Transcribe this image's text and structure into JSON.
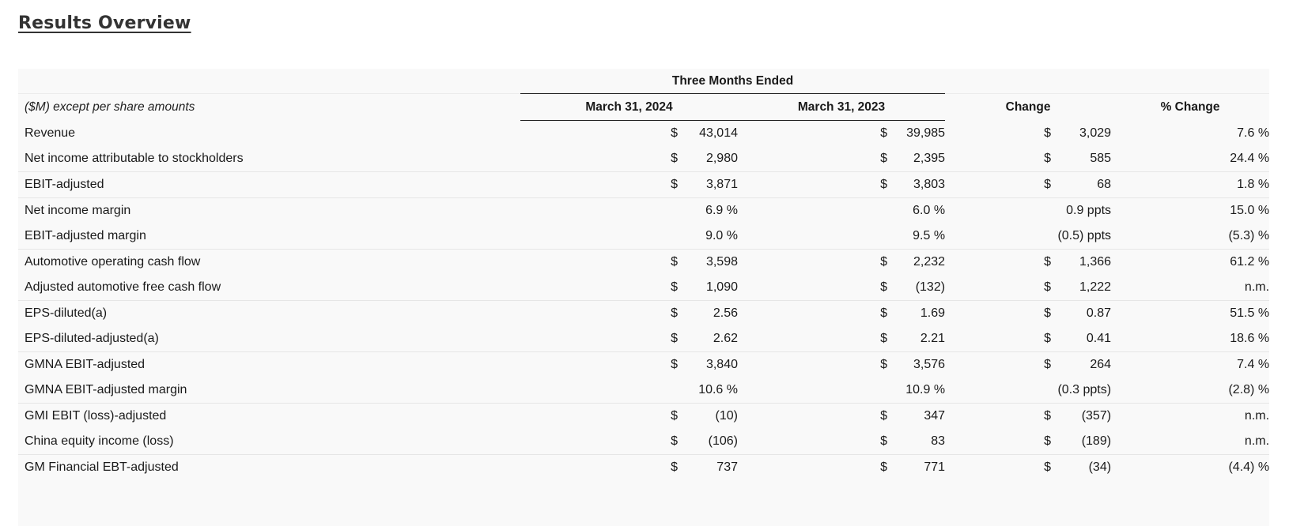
{
  "page_title": "Results Overview",
  "table": {
    "group_header": "Three Months Ended",
    "row_header_label": "($M) except per share amounts",
    "columns": [
      "March 31, 2024",
      "March 31, 2023",
      "Change",
      "% Change"
    ],
    "rows": [
      {
        "label": "Revenue",
        "c1_sym": "$",
        "c1": "43,014",
        "c2_sym": "$",
        "c2": "39,985",
        "ch_sym": "$",
        "ch": "3,029",
        "pct": "7.6 %",
        "sep": false
      },
      {
        "label": "Net income attributable to stockholders",
        "c1_sym": "$",
        "c1": "2,980",
        "c2_sym": "$",
        "c2": "2,395",
        "ch_sym": "$",
        "ch": "585",
        "pct": "24.4 %",
        "sep": true
      },
      {
        "label": "EBIT-adjusted",
        "c1_sym": "$",
        "c1": "3,871",
        "c2_sym": "$",
        "c2": "3,803",
        "ch_sym": "$",
        "ch": "68",
        "pct": "1.8 %",
        "sep": true
      },
      {
        "label": "Net income margin",
        "c1_sym": "",
        "c1": "6.9 %",
        "c2_sym": "",
        "c2": "6.0 %",
        "ch_sym": "",
        "ch": "0.9 ppts",
        "pct": "15.0 %",
        "sep": false
      },
      {
        "label": "EBIT-adjusted margin",
        "c1_sym": "",
        "c1": "9.0 %",
        "c2_sym": "",
        "c2": "9.5 %",
        "ch_sym": "",
        "ch": "(0.5) ppts",
        "pct": "(5.3) %",
        "sep": true
      },
      {
        "label": "Automotive operating cash flow",
        "c1_sym": "$",
        "c1": "3,598",
        "c2_sym": "$",
        "c2": "2,232",
        "ch_sym": "$",
        "ch": "1,366",
        "pct": "61.2 %",
        "sep": false
      },
      {
        "label": "Adjusted automotive free cash flow",
        "c1_sym": "$",
        "c1": "1,090",
        "c2_sym": "$",
        "c2": "(132)",
        "ch_sym": "$",
        "ch": "1,222",
        "pct": "n.m.",
        "sep": true
      },
      {
        "label": "EPS-diluted(a)",
        "c1_sym": "$",
        "c1": "2.56",
        "c2_sym": "$",
        "c2": "1.69",
        "ch_sym": "$",
        "ch": "0.87",
        "pct": "51.5 %",
        "sep": false
      },
      {
        "label": "EPS-diluted-adjusted(a)",
        "c1_sym": "$",
        "c1": "2.62",
        "c2_sym": "$",
        "c2": "2.21",
        "ch_sym": "$",
        "ch": "0.41",
        "pct": "18.6 %",
        "sep": true
      },
      {
        "label": "GMNA EBIT-adjusted",
        "c1_sym": "$",
        "c1": "3,840",
        "c2_sym": "$",
        "c2": "3,576",
        "ch_sym": "$",
        "ch": "264",
        "pct": "7.4 %",
        "sep": false
      },
      {
        "label": "GMNA EBIT-adjusted margin",
        "c1_sym": "",
        "c1": "10.6 %",
        "c2_sym": "",
        "c2": "10.9 %",
        "ch_sym": "",
        "ch": "(0.3 ppts)",
        "pct": "(2.8) %",
        "sep": true
      },
      {
        "label": "GMI EBIT (loss)-adjusted",
        "c1_sym": "$",
        "c1": "(10)",
        "c2_sym": "$",
        "c2": "347",
        "ch_sym": "$",
        "ch": "(357)",
        "pct": "n.m.",
        "sep": false
      },
      {
        "label": "China equity income (loss)",
        "c1_sym": "$",
        "c1": "(106)",
        "c2_sym": "$",
        "c2": "83",
        "ch_sym": "$",
        "ch": "(189)",
        "pct": "n.m.",
        "sep": true
      },
      {
        "label": "GM Financial EBT-adjusted",
        "c1_sym": "$",
        "c1": "737",
        "c2_sym": "$",
        "c2": "771",
        "ch_sym": "$",
        "ch": "(34)",
        "pct": "(4.4) %",
        "sep": false
      }
    ]
  }
}
